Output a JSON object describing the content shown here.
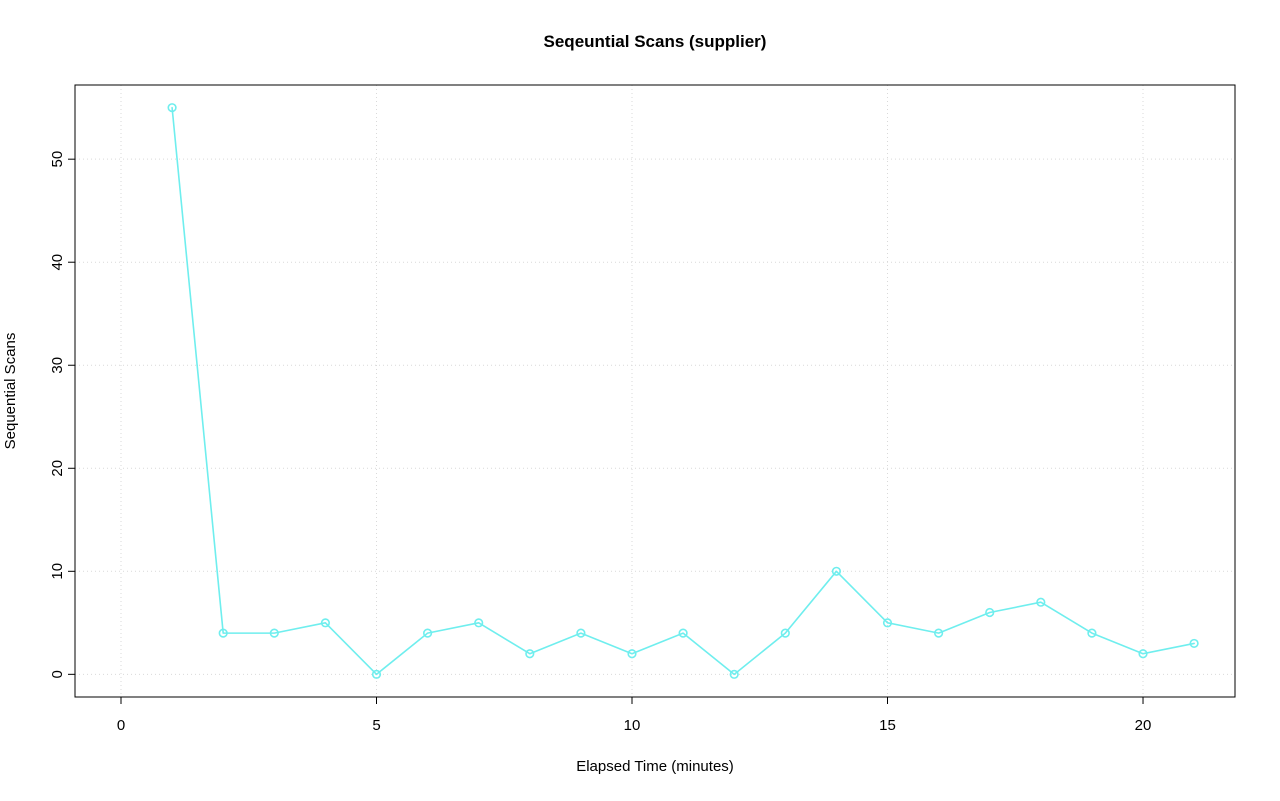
{
  "chart_data": {
    "type": "line",
    "title": "Seqeuntial Scans (supplier)",
    "xlabel": "Elapsed Time (minutes)",
    "ylabel": "Sequential Scans",
    "x": [
      1,
      2,
      3,
      4,
      5,
      6,
      7,
      8,
      9,
      10,
      11,
      12,
      13,
      14,
      15,
      16,
      17,
      18,
      19,
      20,
      21
    ],
    "y": [
      55,
      4,
      4,
      5,
      0,
      4,
      5,
      2,
      4,
      2,
      4,
      0,
      4,
      10,
      5,
      4,
      6,
      7,
      4,
      2,
      3
    ],
    "series_name": "supplier sequential scans",
    "xticks": [
      0,
      5,
      10,
      15,
      20
    ],
    "yticks": [
      0,
      10,
      20,
      30,
      40,
      50
    ],
    "xlim": [
      -0.9,
      21.8
    ],
    "ylim": [
      -2.2,
      57.2
    ],
    "grid": true,
    "legend": "none",
    "marker": "open-circle",
    "colors": {
      "line": "#6feeee",
      "marker": "#6feeee",
      "grid": "#d9d9d9",
      "axis": "#000000",
      "text": "#000000",
      "background": "#ffffff"
    }
  }
}
